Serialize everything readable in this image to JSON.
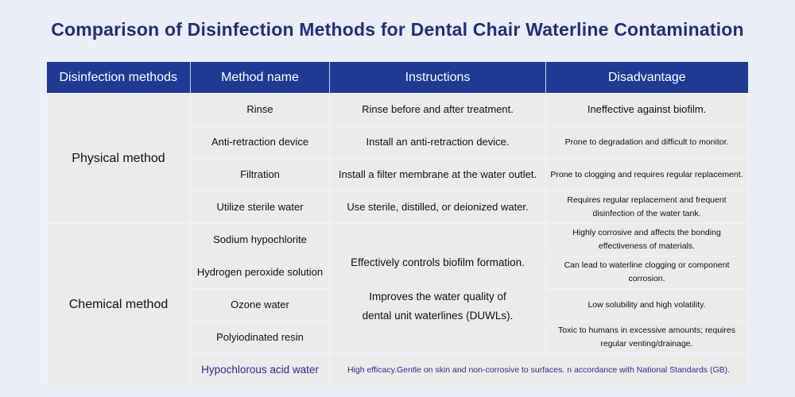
{
  "title": "Comparison of Disinfection Methods for Dental Chair Waterline Contamination",
  "colors": {
    "header_bg": "#1f3a93",
    "title": "#1f2f7f",
    "highlight_text": "#23308a",
    "cell_bg": "#ebebeb"
  },
  "headers": [
    "Disinfection methods",
    "Method name",
    "Instructions",
    "Disadvantage"
  ],
  "physical": {
    "group": "Physical method",
    "rows": [
      {
        "name": "Rinse",
        "instruction": "Rinse before and after treatment.",
        "disadvantage": "Ineffective against biofilm."
      },
      {
        "name": "Anti-retraction device",
        "instruction": "Install an anti-retraction device.",
        "disadvantage": "Prone to degradation and difficult to monitor."
      },
      {
        "name": "Filtration",
        "instruction": "Install a filter membrane at the water outlet.",
        "disadvantage": "Prone to clogging and requires regular replacement."
      },
      {
        "name": "Utilize sterile water",
        "instruction": "Use sterile, distilled, or deionized water.",
        "disadvantage": "Requires regular replacement and frequent disinfection of the water tank."
      }
    ]
  },
  "chemical": {
    "group": "Chemical method",
    "instruction_1": "Effectively controls biofilm formation.",
    "instruction_2": "Improves the water quality of dental unit waterlines (DUWLs).",
    "rows": [
      {
        "name": "Sodium hypochlorite",
        "disadvantage": "Highly corrosive and affects the bonding effectiveness of materials."
      },
      {
        "name": "Hydrogen peroxide solution",
        "disadvantage": "Can lead to waterline clogging or component corrosion."
      },
      {
        "name": "Ozone water",
        "disadvantage": "Low solubility and high volatility."
      },
      {
        "name": "Polyiodinated resin",
        "disadvantage": "Toxic to humans in excessive amounts; requires regular venting/drainage."
      }
    ],
    "highlight": {
      "name": "Hypochlorous acid water",
      "description": "High efficacy.Gentle on skin and non-corrosive to surfaces. n accordance with National Standards (GB)."
    }
  }
}
